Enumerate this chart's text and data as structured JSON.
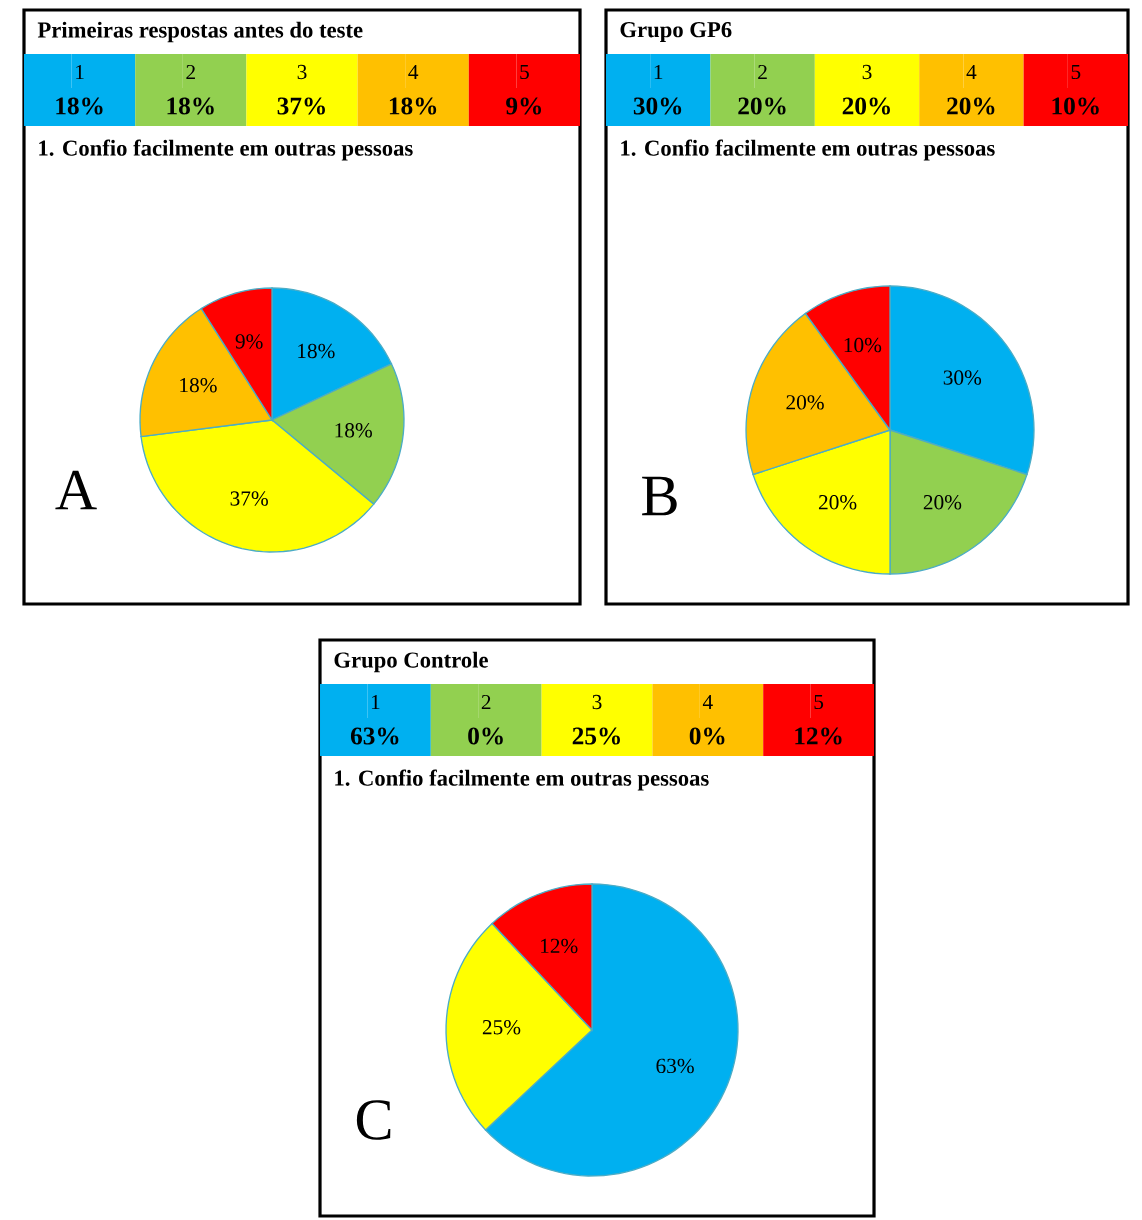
{
  "chart_data": [
    {
      "type": "pie",
      "title": "Primeiras respostas antes do teste",
      "subtitle": "1. Confio facilmente em outras pessoas",
      "categories": [
        "1",
        "2",
        "3",
        "4",
        "5"
      ],
      "values": [
        18,
        18,
        37,
        18,
        9
      ],
      "value_labels": [
        "18%",
        "18%",
        "37%",
        "18%",
        "9%"
      ],
      "colors": [
        "#00b0f0",
        "#92d050",
        "#ffff00",
        "#ffc000",
        "#ff0000"
      ],
      "annotations": [
        "A"
      ],
      "legend": "top"
    },
    {
      "type": "pie",
      "title": "Grupo GP6",
      "subtitle": "1. Confio facilmente em outras pessoas",
      "categories": [
        "1",
        "2",
        "3",
        "4",
        "5"
      ],
      "values": [
        30,
        20,
        20,
        20,
        10
      ],
      "value_labels": [
        "30%",
        "20%",
        "20%",
        "20%",
        "10%"
      ],
      "colors": [
        "#00b0f0",
        "#92d050",
        "#ffff00",
        "#ffc000",
        "#ff0000"
      ],
      "annotations": [
        "B"
      ],
      "legend": "top"
    },
    {
      "type": "pie",
      "title": "Grupo Controle",
      "subtitle": "1. Confio facilmente em outras pessoas",
      "categories": [
        "1",
        "2",
        "3",
        "4",
        "5"
      ],
      "values": [
        63,
        0,
        25,
        0,
        12
      ],
      "value_labels": [
        "63%",
        "0%",
        "25%",
        "0%",
        "12%"
      ],
      "colors": [
        "#00b0f0",
        "#92d050",
        "#ffff00",
        "#ffc000",
        "#ff0000"
      ],
      "annotations": [
        "C"
      ],
      "legend": "top"
    }
  ]
}
